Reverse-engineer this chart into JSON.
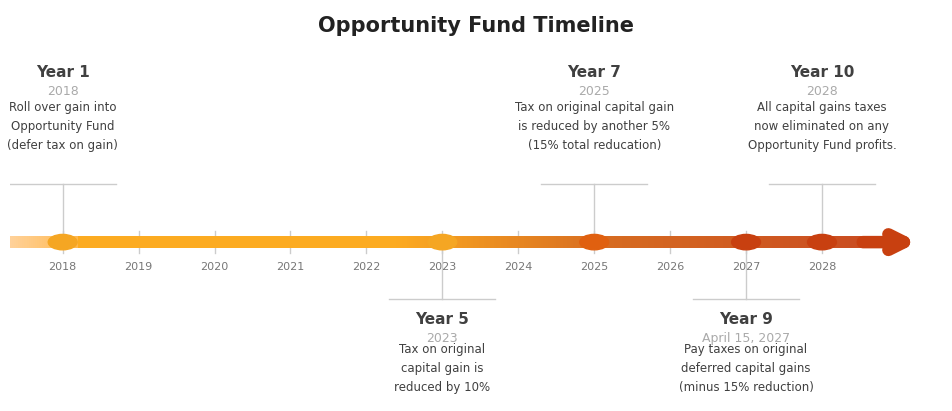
{
  "title": "Opportunity Fund Timeline",
  "title_fontsize": 15,
  "title_fontweight": "bold",
  "background_color": "#ffffff",
  "text_color_dark": "#404040",
  "text_color_gray": "#aaaaaa",
  "events_above": [
    {
      "year": 2018,
      "label": "Year 1",
      "sublabel": "2018",
      "description": "Roll over gain into\nOpportunity Fund\n(defer tax on gain)"
    },
    {
      "year": 2025,
      "label": "Year 7",
      "sublabel": "2025",
      "description": "Tax on original capital gain\nis reduced by another 5%\n(15% total reducation)"
    },
    {
      "year": 2028,
      "label": "Year 10",
      "sublabel": "2028",
      "description": "All capital gains taxes\nnow eliminated on any\nOpportunity Fund profits."
    }
  ],
  "events_below": [
    {
      "year": 2023,
      "label": "Year 5",
      "sublabel": "2023",
      "description": "Tax on original\ncapital gain is\nreduced by 10%"
    },
    {
      "year": 2027,
      "label": "Year 9",
      "sublabel": "April 15, 2027",
      "description": "Pay taxes on original\ndeferred capital gains\n(minus 15% reduction)"
    }
  ],
  "dot_years": [
    2018,
    2023,
    2025,
    2027,
    2028
  ],
  "dot_colors": [
    "#F5A623",
    "#F5A623",
    "#E06010",
    "#C84010",
    "#C84010"
  ],
  "tick_years": [
    2018,
    2019,
    2020,
    2021,
    2022,
    2023,
    2024,
    2025,
    2026,
    2027,
    2028
  ],
  "xmin": 2017.3,
  "xmax": 2029.6,
  "timeline_y": 0.0,
  "bar_ymin": -0.16,
  "bar_ymax": 0.16,
  "ylim_min": -4.5,
  "ylim_max": 6.5
}
